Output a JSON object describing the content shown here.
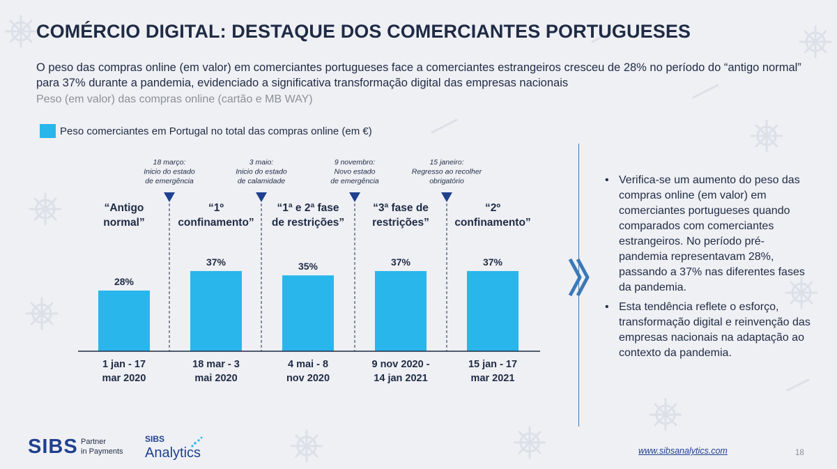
{
  "title": "COMÉRCIO DIGITAL: DESTAQUE DOS COMERCIANTES PORTUGUESES",
  "subtitle": "O peso das compras online (em valor) em comerciantes portugueses face a comerciantes estrangeiros cresceu de 28% no período do “antigo normal” para 37% durante a pandemia, evidenciado a significativa transformação digital das empresas nacionais",
  "subheading": "Peso (em valor) das compras online (cartão e MB WAY)",
  "colors": {
    "bar": "#29b6ea",
    "navy": "#1f2a44",
    "marker": "#1f3f8f",
    "accent": "#3a78b8"
  },
  "chart_data": {
    "type": "bar",
    "legend": "Peso comerciantes em Portugal no total das compras online (em €)",
    "categories": [
      [
        "1 jan - 17",
        "mar 2020"
      ],
      [
        "18 mar - 3",
        "mai 2020"
      ],
      [
        "4 mai - 8",
        "nov 2020"
      ],
      [
        "9 nov 2020 -",
        "14 jan 2021"
      ],
      [
        "15 jan - 17",
        "mar 2021"
      ]
    ],
    "values": [
      28,
      37,
      35,
      37,
      37
    ],
    "value_labels": [
      "28%",
      "37%",
      "35%",
      "37%",
      "37%"
    ],
    "phase_labels": [
      [
        "“Antigo",
        "normal”"
      ],
      [
        "“1º",
        "confinamento”"
      ],
      [
        "“1ª e 2ª fase",
        "de restrições”"
      ],
      [
        "“3ª fase de",
        "restrições”"
      ],
      [
        "“2º",
        "confinamento”"
      ]
    ],
    "events": [
      [
        "18 março:",
        "Inicio do estado",
        "de emergência"
      ],
      [
        "3 maio:",
        "Inicio do estado",
        "de calamidade"
      ],
      [
        "9 novembro:",
        "Novo estado",
        "de emergência"
      ],
      [
        "15 janeiro:",
        "Regresso ao recolher",
        "obrigatório"
      ]
    ],
    "ylim": [
      0,
      40
    ]
  },
  "side_bullets": [
    "Verifica-se um aumento do peso das compras online (em valor) em comerciantes portugueses quando comparados com comerciantes estrangeiros. No período pré-pandemia representavam 28%, passando a 37% nas diferentes fases da pandemia.",
    "Esta tendência reflete o esforço, transformação digital e reinvenção das empresas nacionais na adaptação ao contexto da pandemia."
  ],
  "footer": {
    "logo_sibs": "SIBS",
    "logo_tagline_1": "Partner",
    "logo_tagline_2": "in Payments",
    "logo_analytics_top": "SIBS",
    "logo_analytics": "Analytics",
    "website": "www.sibsanalytics.com",
    "page_number": "18"
  }
}
